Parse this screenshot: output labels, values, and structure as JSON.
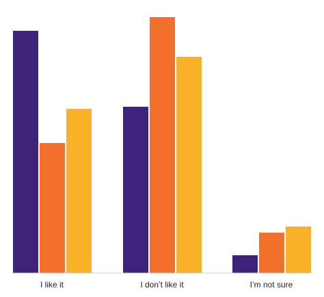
{
  "chart_data": {
    "type": "bar",
    "title": "",
    "xlabel": "",
    "ylabel": "",
    "categories": [
      "I like it",
      "I don’t like it",
      "I’m not sure"
    ],
    "series": [
      {
        "color": "#3f227a",
        "values": [
          354,
          243,
          26
        ]
      },
      {
        "color": "#f26f2c",
        "values": [
          190,
          374,
          59
        ]
      },
      {
        "color": "#f9b12a",
        "values": [
          240,
          316,
          68
        ]
      }
    ],
    "ylim": [
      0,
      380
    ],
    "grid": false,
    "legend": "none"
  }
}
